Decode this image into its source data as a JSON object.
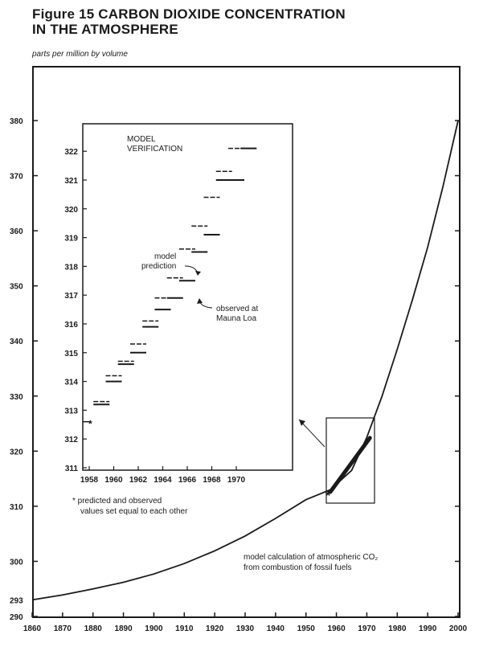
{
  "title_line1": "Figure 15 CARBON DIOXIDE CONCENTRATION",
  "title_line2": "IN THE ATMOSPHERE",
  "units": "parts per million by volume",
  "inset_title_line1": "MODEL",
  "inset_title_line2": "VERIFICATION",
  "label_model_prediction_line1": "model",
  "label_model_prediction_line2": "prediction",
  "label_observed_line1": "observed at",
  "label_observed_line2": "Mauna Loa",
  "footnote_line1": "* predicted and observed",
  "footnote_line2": "values set equal to each other",
  "curve_label_line1": "model calculation of atmospheric CO₂",
  "curve_label_line2": "from combustion of fossil fuels",
  "extra_y_label": "293",
  "chart_data": [
    {
      "type": "line",
      "title": "Figure 15 CARBON DIOXIDE CONCENTRATION IN THE ATMOSPHERE",
      "ylabel": "parts per million by volume",
      "xlim": [
        1860,
        2000
      ],
      "ylim": [
        290,
        380
      ],
      "x_ticks": [
        1860,
        1870,
        1880,
        1890,
        1900,
        1910,
        1920,
        1930,
        1940,
        1950,
        1960,
        1970,
        1980,
        1990,
        2000
      ],
      "y_ticks": [
        290,
        300,
        310,
        320,
        330,
        340,
        350,
        360,
        370,
        380
      ],
      "series": [
        {
          "name": "model calculation of atmospheric CO₂ from combustion of fossil fuels",
          "x": [
            1860,
            1870,
            1880,
            1890,
            1900,
            1910,
            1920,
            1930,
            1940,
            1950,
            1958,
            1965,
            1970,
            1975,
            1980,
            1985,
            1990,
            1995,
            2000
          ],
          "y": [
            293.0,
            293.9,
            295.0,
            296.2,
            297.7,
            299.6,
            301.9,
            304.6,
            307.8,
            311.2,
            313.0,
            316.5,
            322.5,
            330.0,
            338.5,
            347.5,
            357.0,
            368.0,
            380.0
          ]
        }
      ],
      "highlight": {
        "x": [
          1958,
          1971
        ],
        "y": [
          312.6,
          322.4
        ]
      }
    },
    {
      "type": "line",
      "title": "MODEL VERIFICATION",
      "xlim": [
        1958,
        1972
      ],
      "ylim": [
        311,
        322.5
      ],
      "x_ticks": [
        1958,
        1960,
        1962,
        1964,
        1966,
        1968,
        1970
      ],
      "y_ticks": [
        311,
        312,
        313,
        314,
        315,
        316,
        317,
        318,
        319,
        320,
        321,
        322
      ],
      "series": [
        {
          "name": "model prediction",
          "x": [
            1958,
            1959,
            1960,
            1961,
            1962,
            1963,
            1964,
            1965,
            1966,
            1967,
            1968,
            1969,
            1970,
            1971
          ],
          "y": [
            312.6,
            313.3,
            314.2,
            314.7,
            315.3,
            316.1,
            316.9,
            317.6,
            318.6,
            319.4,
            320.4,
            321.3,
            322.1,
            322.1
          ]
        },
        {
          "name": "observed at Mauna Loa",
          "x": [
            1958,
            1959,
            1960,
            1961,
            1962,
            1963,
            1964,
            1965,
            1966,
            1967,
            1968,
            1969,
            1970,
            1971
          ],
          "y": [
            312.6,
            313.2,
            314.0,
            314.6,
            315.0,
            315.9,
            316.5,
            316.9,
            317.5,
            318.5,
            319.1,
            321.0,
            321.0,
            322.1
          ]
        }
      ]
    }
  ]
}
